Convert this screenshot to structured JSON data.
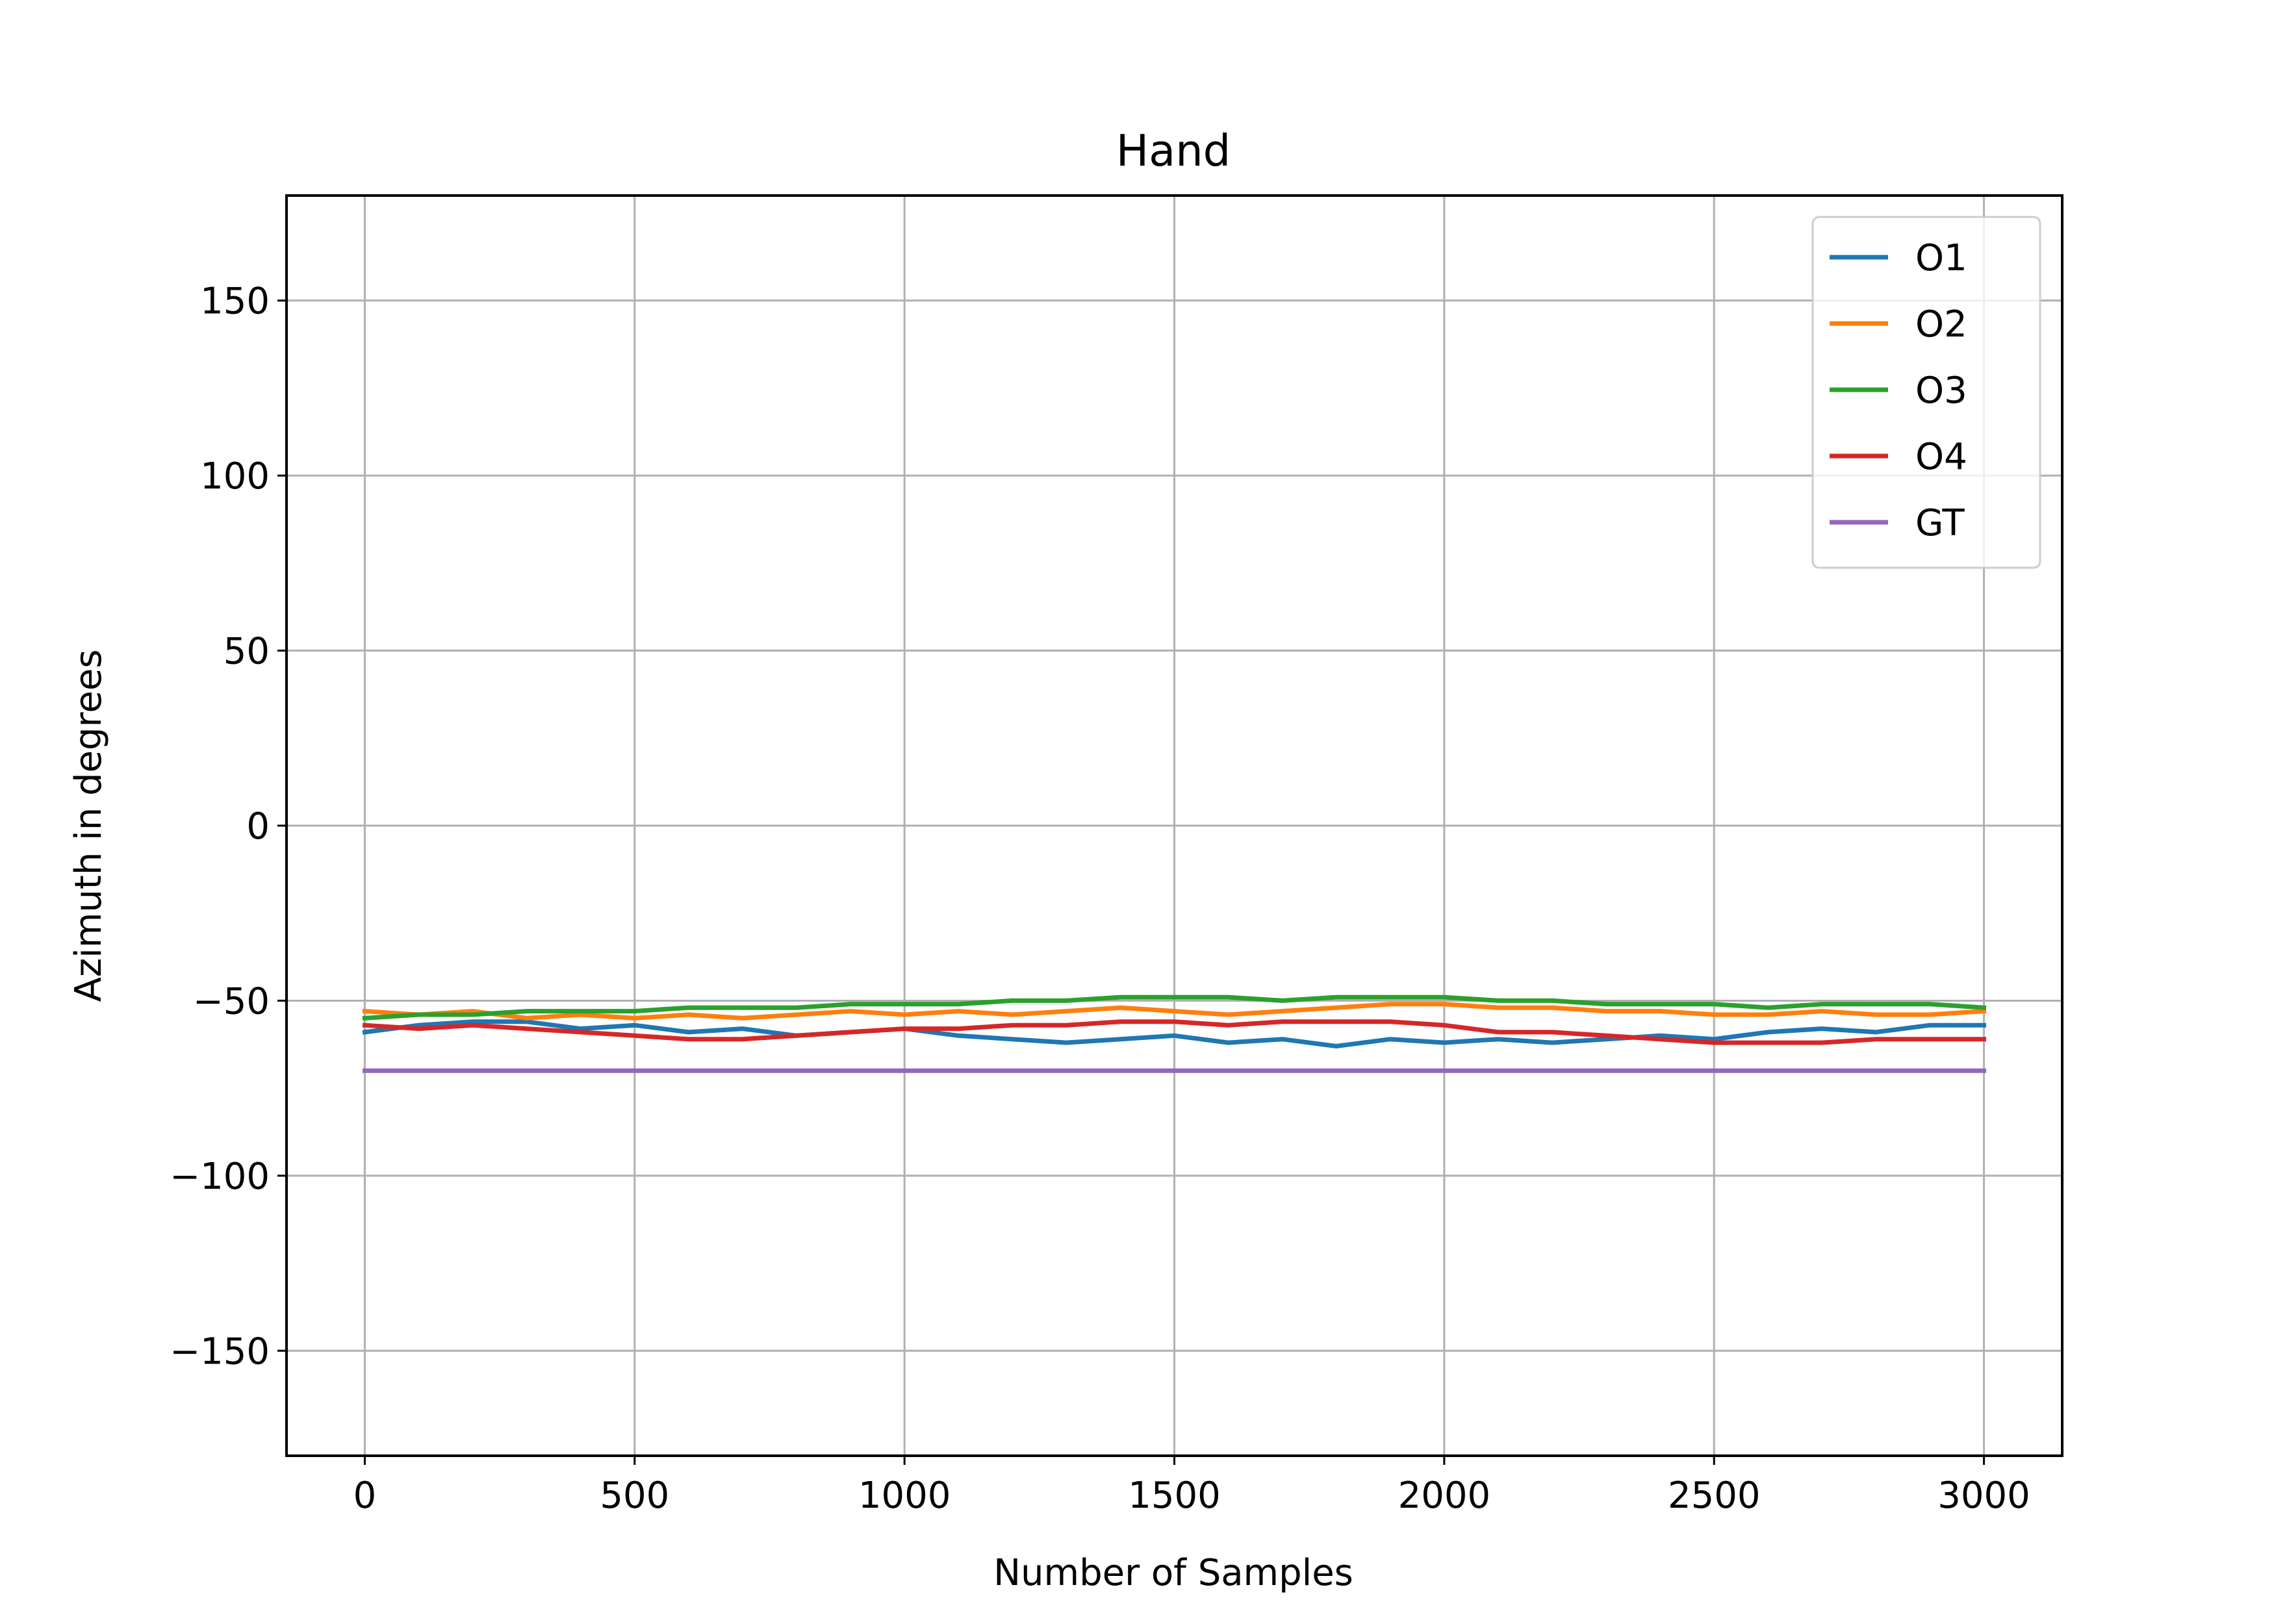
{
  "chart_data": {
    "type": "line",
    "title": "Hand",
    "xlabel": "Number of Samples",
    "ylabel": "Azimuth in degrees",
    "xlim": [
      -145,
      3145
    ],
    "ylim": [
      -180,
      180
    ],
    "xticks": [
      0,
      500,
      1000,
      1500,
      2000,
      2500,
      3000
    ],
    "xtick_labels": [
      "0",
      "500",
      "1000",
      "1500",
      "2000",
      "2500",
      "3000"
    ],
    "yticks": [
      -150,
      -100,
      -50,
      0,
      50,
      100,
      150
    ],
    "ytick_labels": [
      "−150",
      "−100",
      "−50",
      "0",
      "50",
      "100",
      "150"
    ],
    "grid": true,
    "legend_position": "top-right",
    "x": [
      0,
      100,
      200,
      300,
      400,
      500,
      600,
      700,
      800,
      900,
      1000,
      1100,
      1200,
      1300,
      1400,
      1500,
      1600,
      1700,
      1800,
      1900,
      2000,
      2100,
      2200,
      2300,
      2400,
      2500,
      2600,
      2700,
      2800,
      2900,
      3000
    ],
    "series": [
      {
        "name": "O1",
        "color": "#1f77b4",
        "values": [
          -59,
          -57,
          -56,
          -56,
          -58,
          -57,
          -59,
          -58,
          -60,
          -59,
          -58,
          -60,
          -61,
          -62,
          -61,
          -60,
          -62,
          -61,
          -63,
          -61,
          -62,
          -61,
          -62,
          -61,
          -60,
          -61,
          -59,
          -58,
          -59,
          -57,
          -57
        ]
      },
      {
        "name": "O2",
        "color": "#ff7f0e",
        "values": [
          -53,
          -54,
          -53,
          -55,
          -54,
          -55,
          -54,
          -55,
          -54,
          -53,
          -54,
          -53,
          -54,
          -53,
          -52,
          -53,
          -54,
          -53,
          -52,
          -51,
          -51,
          -52,
          -52,
          -53,
          -53,
          -54,
          -54,
          -53,
          -54,
          -54,
          -53
        ]
      },
      {
        "name": "O3",
        "color": "#2ca02c",
        "values": [
          -55,
          -54,
          -54,
          -53,
          -53,
          -53,
          -52,
          -52,
          -52,
          -51,
          -51,
          -51,
          -50,
          -50,
          -49,
          -49,
          -49,
          -50,
          -49,
          -49,
          -49,
          -50,
          -50,
          -51,
          -51,
          -51,
          -52,
          -51,
          -51,
          -51,
          -52
        ]
      },
      {
        "name": "O4",
        "color": "#d62728",
        "values": [
          -57,
          -58,
          -57,
          -58,
          -59,
          -60,
          -61,
          -61,
          -60,
          -59,
          -58,
          -58,
          -57,
          -57,
          -56,
          -56,
          -57,
          -56,
          -56,
          -56,
          -57,
          -59,
          -59,
          -60,
          -61,
          -62,
          -62,
          -62,
          -61,
          -61,
          -61
        ]
      },
      {
        "name": "GT",
        "color": "#9467bd",
        "values": [
          -70,
          -70,
          -70,
          -70,
          -70,
          -70,
          -70,
          -70,
          -70,
          -70,
          -70,
          -70,
          -70,
          -70,
          -70,
          -70,
          -70,
          -70,
          -70,
          -70,
          -70,
          -70,
          -70,
          -70,
          -70,
          -70,
          -70,
          -70,
          -70,
          -70,
          -70
        ]
      }
    ]
  }
}
